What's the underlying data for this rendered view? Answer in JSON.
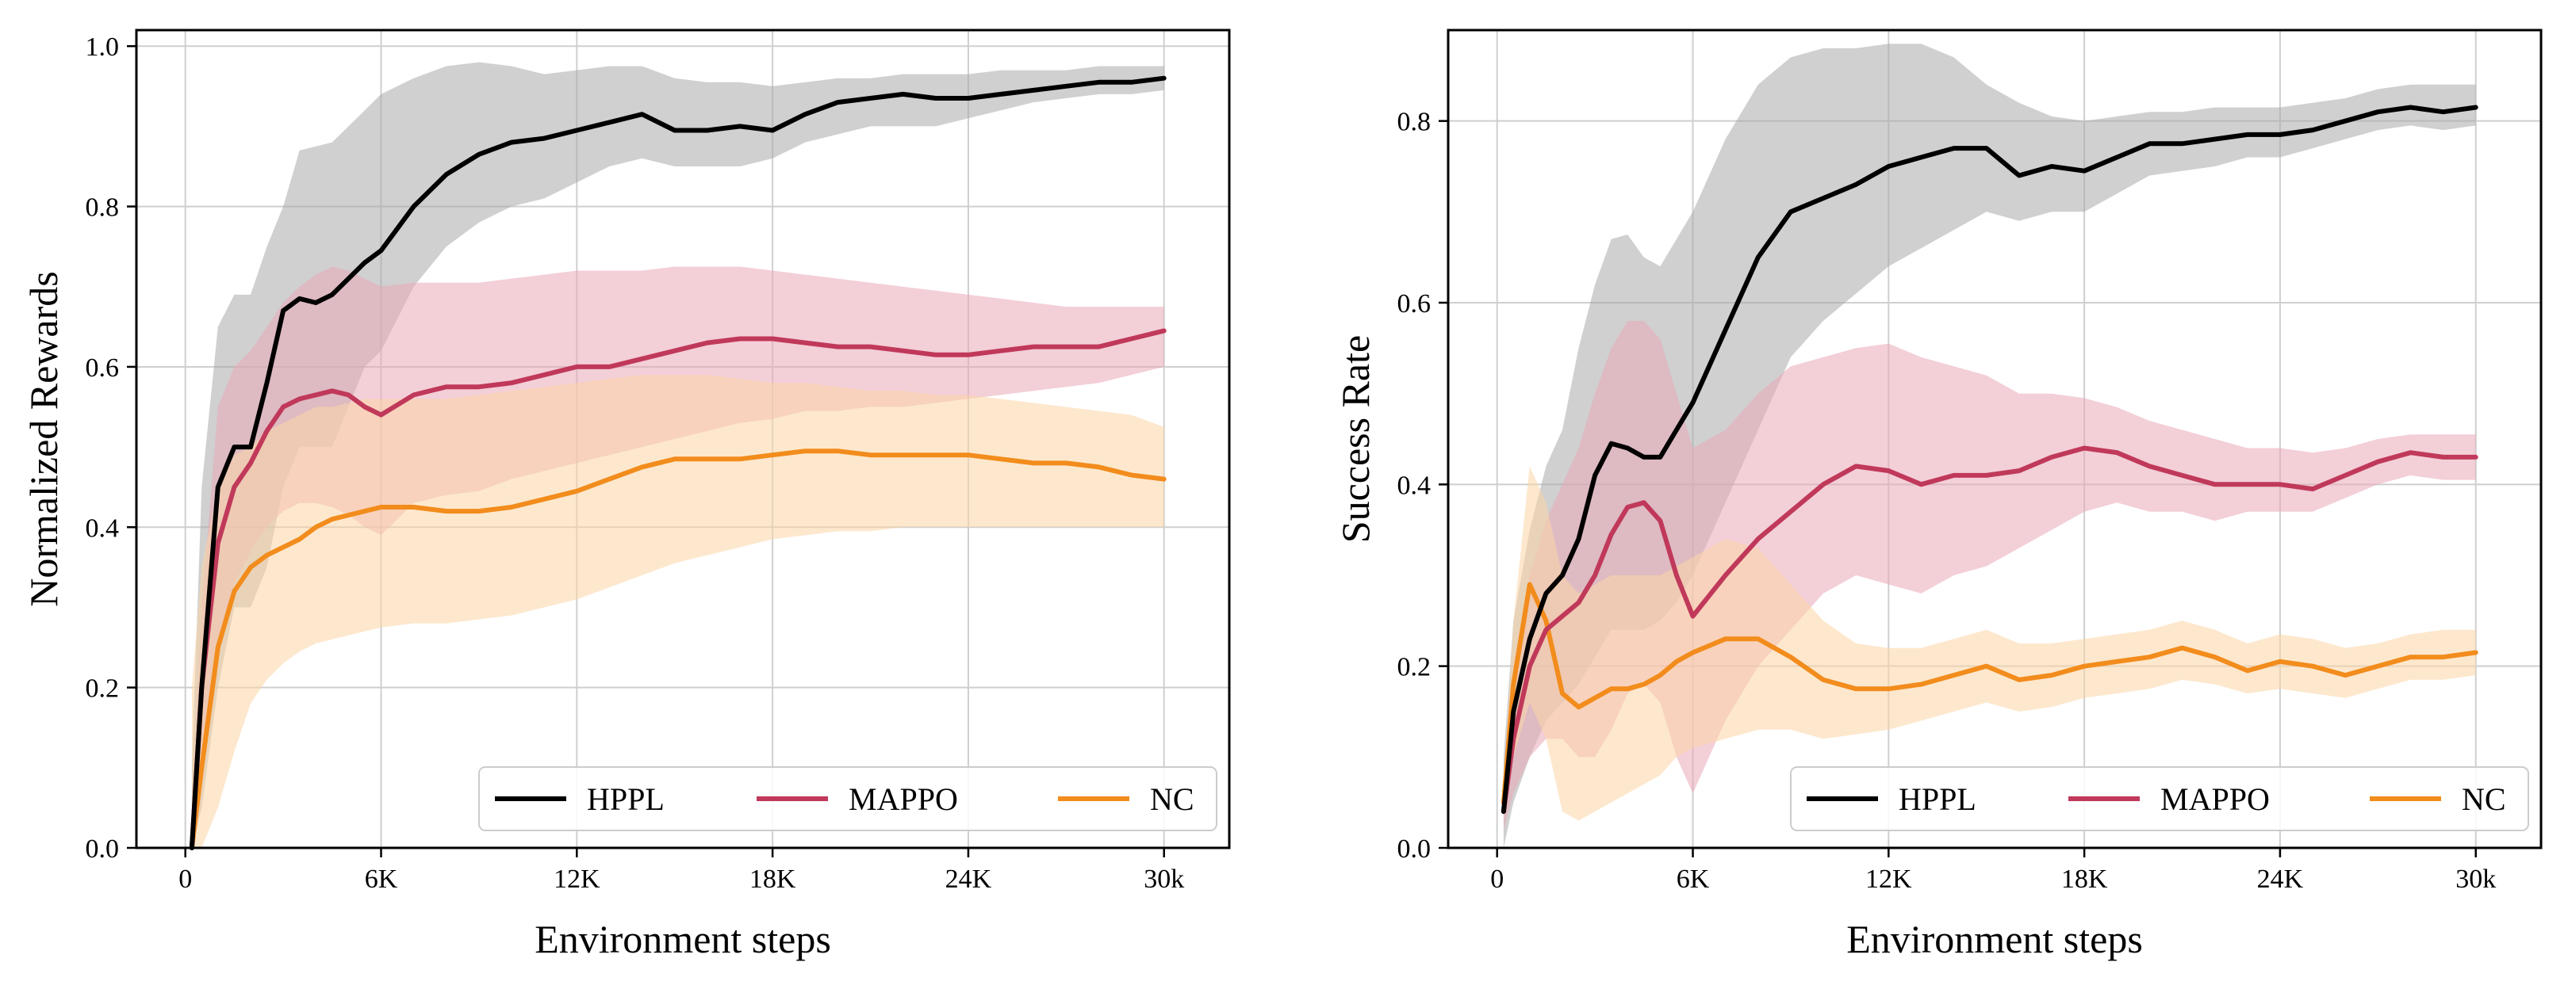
{
  "chart_data": [
    {
      "type": "line",
      "title": "",
      "xlabel": "Environment steps",
      "ylabel": "Normalized Rewards",
      "xlim": [
        -1.5,
        32
      ],
      "ylim": [
        0,
        1.02
      ],
      "x_ticks": [
        0,
        6,
        12,
        18,
        24,
        30
      ],
      "x_tick_labels": [
        "0",
        "6K",
        "12K",
        "18K",
        "24K",
        "30k"
      ],
      "y_ticks": [
        0,
        0.2,
        0.4,
        0.6,
        0.8,
        1.0
      ],
      "y_tick_labels": [
        "0.0",
        "0.2",
        "0.4",
        "0.6",
        "0.8",
        "1.0"
      ],
      "grid": true,
      "legend_position": "bottom-right",
      "x": [
        0.2,
        0.5,
        1,
        1.5,
        2,
        2.5,
        3,
        3.5,
        4,
        4.5,
        5,
        5.5,
        6,
        7,
        8,
        9,
        10,
        11,
        12,
        13,
        14,
        15,
        16,
        17,
        18,
        19,
        20,
        21,
        22,
        23,
        24,
        25,
        26,
        27,
        28,
        29,
        30
      ],
      "series": [
        {
          "name": "HPPL",
          "color": "#000000",
          "band_color": "#a9a9a9",
          "mean": [
            0.0,
            0.2,
            0.45,
            0.5,
            0.5,
            0.58,
            0.67,
            0.685,
            0.68,
            0.69,
            0.71,
            0.73,
            0.745,
            0.8,
            0.84,
            0.865,
            0.88,
            0.885,
            0.895,
            0.905,
            0.915,
            0.895,
            0.895,
            0.9,
            0.895,
            0.915,
            0.93,
            0.935,
            0.94,
            0.935,
            0.935,
            0.94,
            0.945,
            0.95,
            0.955,
            0.955,
            0.96
          ],
          "upper": [
            0.1,
            0.45,
            0.65,
            0.69,
            0.69,
            0.75,
            0.8,
            0.87,
            0.875,
            0.88,
            0.9,
            0.92,
            0.94,
            0.96,
            0.975,
            0.98,
            0.975,
            0.965,
            0.97,
            0.975,
            0.975,
            0.96,
            0.955,
            0.955,
            0.95,
            0.955,
            0.96,
            0.96,
            0.965,
            0.965,
            0.965,
            0.97,
            0.97,
            0.97,
            0.975,
            0.975,
            0.975
          ],
          "lower": [
            0.0,
            0.05,
            0.2,
            0.3,
            0.3,
            0.35,
            0.45,
            0.5,
            0.5,
            0.5,
            0.55,
            0.6,
            0.62,
            0.7,
            0.75,
            0.78,
            0.8,
            0.81,
            0.83,
            0.85,
            0.86,
            0.85,
            0.85,
            0.85,
            0.86,
            0.88,
            0.89,
            0.9,
            0.9,
            0.9,
            0.91,
            0.92,
            0.93,
            0.935,
            0.94,
            0.94,
            0.945
          ]
        },
        {
          "name": "MAPPO",
          "color": "#c0395a",
          "band_color": "#e9a8b8",
          "mean": [
            0.0,
            0.2,
            0.38,
            0.45,
            0.48,
            0.52,
            0.55,
            0.56,
            0.565,
            0.57,
            0.565,
            0.55,
            0.54,
            0.565,
            0.575,
            0.575,
            0.58,
            0.59,
            0.6,
            0.6,
            0.61,
            0.62,
            0.63,
            0.635,
            0.635,
            0.63,
            0.625,
            0.625,
            0.62,
            0.615,
            0.615,
            0.62,
            0.625,
            0.625,
            0.625,
            0.635,
            0.645
          ],
          "upper": [
            0.05,
            0.3,
            0.55,
            0.6,
            0.62,
            0.65,
            0.68,
            0.7,
            0.715,
            0.725,
            0.72,
            0.71,
            0.7,
            0.705,
            0.705,
            0.705,
            0.71,
            0.715,
            0.72,
            0.72,
            0.72,
            0.725,
            0.725,
            0.725,
            0.72,
            0.715,
            0.71,
            0.705,
            0.7,
            0.695,
            0.69,
            0.685,
            0.68,
            0.675,
            0.675,
            0.675,
            0.675
          ],
          "lower": [
            0.0,
            0.1,
            0.25,
            0.33,
            0.37,
            0.4,
            0.42,
            0.43,
            0.43,
            0.425,
            0.415,
            0.4,
            0.39,
            0.43,
            0.44,
            0.445,
            0.46,
            0.47,
            0.48,
            0.49,
            0.5,
            0.51,
            0.52,
            0.53,
            0.535,
            0.545,
            0.545,
            0.55,
            0.55,
            0.555,
            0.56,
            0.565,
            0.57,
            0.575,
            0.58,
            0.59,
            0.6
          ]
        },
        {
          "name": "NC",
          "color": "#f28c1c",
          "band_color": "#fbd5a6",
          "mean": [
            0.0,
            0.1,
            0.25,
            0.32,
            0.35,
            0.365,
            0.375,
            0.385,
            0.4,
            0.41,
            0.415,
            0.42,
            0.425,
            0.425,
            0.42,
            0.42,
            0.425,
            0.435,
            0.445,
            0.46,
            0.475,
            0.485,
            0.485,
            0.485,
            0.49,
            0.495,
            0.495,
            0.49,
            0.49,
            0.49,
            0.49,
            0.485,
            0.48,
            0.48,
            0.475,
            0.465,
            0.46
          ],
          "upper": [
            0.2,
            0.35,
            0.45,
            0.49,
            0.5,
            0.52,
            0.53,
            0.54,
            0.55,
            0.55,
            0.555,
            0.56,
            0.56,
            0.56,
            0.56,
            0.565,
            0.57,
            0.575,
            0.58,
            0.585,
            0.59,
            0.59,
            0.59,
            0.585,
            0.58,
            0.58,
            0.575,
            0.57,
            0.57,
            0.565,
            0.565,
            0.56,
            0.555,
            0.55,
            0.545,
            0.54,
            0.525
          ],
          "lower": [
            0.0,
            0.0,
            0.05,
            0.12,
            0.18,
            0.21,
            0.23,
            0.245,
            0.255,
            0.26,
            0.265,
            0.27,
            0.275,
            0.28,
            0.28,
            0.285,
            0.29,
            0.3,
            0.31,
            0.325,
            0.34,
            0.355,
            0.365,
            0.375,
            0.385,
            0.39,
            0.395,
            0.395,
            0.4,
            0.4,
            0.4,
            0.4,
            0.4,
            0.4,
            0.4,
            0.4,
            0.4
          ]
        }
      ]
    },
    {
      "type": "line",
      "title": "",
      "xlabel": "Environment steps",
      "ylabel": "Success Rate",
      "xlim": [
        -1.5,
        32
      ],
      "ylim": [
        0,
        0.9
      ],
      "x_ticks": [
        0,
        6,
        12,
        18,
        24,
        30
      ],
      "x_tick_labels": [
        "0",
        "6K",
        "12K",
        "18K",
        "24K",
        "30k"
      ],
      "y_ticks": [
        0,
        0.2,
        0.4,
        0.6,
        0.8
      ],
      "y_tick_labels": [
        "0.0",
        "0.2",
        "0.4",
        "0.6",
        "0.8"
      ],
      "grid": true,
      "legend_position": "bottom-right",
      "x": [
        0.2,
        0.5,
        1,
        1.5,
        2,
        2.5,
        3,
        3.5,
        4,
        4.5,
        5,
        5.5,
        6,
        7,
        8,
        9,
        10,
        11,
        12,
        13,
        14,
        15,
        16,
        17,
        18,
        19,
        20,
        21,
        22,
        23,
        24,
        25,
        26,
        27,
        28,
        29,
        30
      ],
      "series": [
        {
          "name": "HPPL",
          "color": "#000000",
          "band_color": "#a9a9a9",
          "mean": [
            0.04,
            0.15,
            0.23,
            0.28,
            0.3,
            0.34,
            0.41,
            0.445,
            0.44,
            0.43,
            0.43,
            0.46,
            0.49,
            0.57,
            0.65,
            0.7,
            0.715,
            0.73,
            0.75,
            0.76,
            0.77,
            0.77,
            0.74,
            0.75,
            0.745,
            0.76,
            0.775,
            0.775,
            0.78,
            0.785,
            0.785,
            0.79,
            0.8,
            0.81,
            0.815,
            0.81,
            0.815
          ],
          "upper": [
            0.1,
            0.25,
            0.35,
            0.42,
            0.46,
            0.55,
            0.62,
            0.67,
            0.675,
            0.65,
            0.64,
            0.67,
            0.7,
            0.78,
            0.84,
            0.87,
            0.88,
            0.88,
            0.885,
            0.885,
            0.87,
            0.84,
            0.82,
            0.805,
            0.8,
            0.805,
            0.81,
            0.81,
            0.815,
            0.815,
            0.815,
            0.82,
            0.825,
            0.835,
            0.84,
            0.84,
            0.84
          ],
          "lower": [
            0.0,
            0.05,
            0.1,
            0.14,
            0.16,
            0.18,
            0.21,
            0.24,
            0.24,
            0.24,
            0.25,
            0.27,
            0.3,
            0.38,
            0.46,
            0.54,
            0.58,
            0.61,
            0.64,
            0.66,
            0.68,
            0.7,
            0.69,
            0.7,
            0.7,
            0.72,
            0.74,
            0.745,
            0.75,
            0.76,
            0.76,
            0.77,
            0.78,
            0.79,
            0.795,
            0.79,
            0.795
          ]
        },
        {
          "name": "MAPPO",
          "color": "#c0395a",
          "band_color": "#e9a8b8",
          "mean": [
            0.04,
            0.12,
            0.2,
            0.24,
            0.255,
            0.27,
            0.3,
            0.345,
            0.375,
            0.38,
            0.36,
            0.3,
            0.255,
            0.3,
            0.34,
            0.37,
            0.4,
            0.42,
            0.415,
            0.4,
            0.41,
            0.41,
            0.415,
            0.43,
            0.44,
            0.435,
            0.42,
            0.41,
            0.4,
            0.4,
            0.4,
            0.395,
            0.41,
            0.425,
            0.435,
            0.43,
            0.43
          ],
          "upper": [
            0.06,
            0.2,
            0.3,
            0.36,
            0.4,
            0.44,
            0.5,
            0.55,
            0.58,
            0.58,
            0.56,
            0.5,
            0.44,
            0.46,
            0.5,
            0.53,
            0.54,
            0.55,
            0.555,
            0.54,
            0.53,
            0.52,
            0.5,
            0.5,
            0.495,
            0.485,
            0.47,
            0.46,
            0.45,
            0.44,
            0.44,
            0.435,
            0.44,
            0.45,
            0.455,
            0.455,
            0.455
          ],
          "lower": [
            0.02,
            0.06,
            0.1,
            0.12,
            0.12,
            0.1,
            0.1,
            0.13,
            0.17,
            0.18,
            0.16,
            0.1,
            0.06,
            0.14,
            0.2,
            0.24,
            0.28,
            0.3,
            0.29,
            0.28,
            0.3,
            0.31,
            0.33,
            0.35,
            0.37,
            0.38,
            0.37,
            0.37,
            0.36,
            0.37,
            0.37,
            0.37,
            0.385,
            0.4,
            0.41,
            0.405,
            0.405
          ]
        },
        {
          "name": "NC",
          "color": "#f28c1c",
          "band_color": "#fbd5a6",
          "mean": [
            0.05,
            0.18,
            0.29,
            0.25,
            0.17,
            0.155,
            0.165,
            0.175,
            0.175,
            0.18,
            0.19,
            0.205,
            0.215,
            0.23,
            0.23,
            0.21,
            0.185,
            0.175,
            0.175,
            0.18,
            0.19,
            0.2,
            0.185,
            0.19,
            0.2,
            0.205,
            0.21,
            0.22,
            0.21,
            0.195,
            0.205,
            0.2,
            0.19,
            0.2,
            0.21,
            0.21,
            0.215
          ],
          "upper": [
            0.07,
            0.25,
            0.42,
            0.38,
            0.3,
            0.28,
            0.29,
            0.3,
            0.3,
            0.3,
            0.3,
            0.31,
            0.32,
            0.34,
            0.33,
            0.29,
            0.25,
            0.225,
            0.22,
            0.22,
            0.23,
            0.24,
            0.225,
            0.225,
            0.23,
            0.235,
            0.24,
            0.25,
            0.24,
            0.225,
            0.235,
            0.23,
            0.22,
            0.225,
            0.235,
            0.24,
            0.24
          ],
          "lower": [
            0.03,
            0.1,
            0.16,
            0.12,
            0.04,
            0.03,
            0.04,
            0.05,
            0.06,
            0.07,
            0.08,
            0.1,
            0.11,
            0.12,
            0.13,
            0.13,
            0.12,
            0.125,
            0.13,
            0.14,
            0.15,
            0.16,
            0.15,
            0.155,
            0.165,
            0.17,
            0.175,
            0.185,
            0.18,
            0.17,
            0.175,
            0.17,
            0.165,
            0.175,
            0.185,
            0.185,
            0.19
          ]
        }
      ]
    }
  ]
}
